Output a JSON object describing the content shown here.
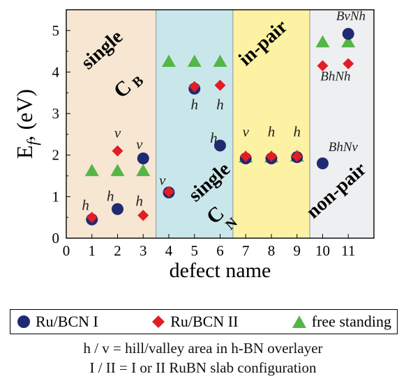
{
  "chart_data": {
    "type": "scatter",
    "xlabel": "defect name",
    "ylabel": "E",
    "ylabel_sub": "f",
    "ylabel_unit": ", (eV)",
    "xlim": [
      0,
      12
    ],
    "ylim": [
      0,
      5.5
    ],
    "xticks": [
      0,
      1,
      2,
      3,
      4,
      5,
      6,
      7,
      8,
      9,
      10,
      11
    ],
    "yticks": [
      0,
      1,
      2,
      3,
      4,
      5
    ],
    "grid": false,
    "legend_position": "below",
    "regions": [
      {
        "x0": 0,
        "x1": 3.5,
        "color": "#f6e6d2",
        "labels": [
          "single",
          "C",
          "B"
        ]
      },
      {
        "x0": 3.5,
        "x1": 6.5,
        "color": "#c9e7ea",
        "labels": [
          "single",
          "C",
          "N"
        ]
      },
      {
        "x0": 6.5,
        "x1": 9.5,
        "color": "#fdf2a4",
        "labels": [
          "in-pair"
        ]
      },
      {
        "x0": 9.5,
        "x1": 12,
        "color": "#eeeff1",
        "labels": [
          "non-pair"
        ]
      }
    ],
    "series": [
      {
        "name": "Ru/BCN I",
        "marker": "circle",
        "color": "#1f2a73",
        "x": [
          1,
          2,
          3,
          4,
          5,
          6,
          7,
          8,
          9,
          10,
          11
        ],
        "y": [
          0.45,
          0.7,
          1.92,
          1.1,
          3.6,
          2.23,
          1.92,
          1.92,
          1.95,
          1.8,
          4.92
        ]
      },
      {
        "name": "Ru/BCN II",
        "marker": "diamond",
        "color": "#e01e24",
        "x": [
          1,
          2,
          3,
          4,
          5,
          6,
          7,
          8,
          9,
          10,
          11
        ],
        "y": [
          0.5,
          2.1,
          0.55,
          1.12,
          3.65,
          3.68,
          1.97,
          1.97,
          1.97,
          4.15,
          4.2
        ]
      },
      {
        "name": "free standing",
        "marker": "triangle",
        "color": "#55b548",
        "x": [
          1,
          2,
          3,
          4,
          5,
          6,
          7,
          8,
          9,
          10,
          11
        ],
        "y": [
          1.62,
          1.62,
          1.62,
          4.25,
          4.25,
          4.25,
          1.95,
          1.95,
          1.97,
          4.72,
          4.72
        ]
      }
    ],
    "annotations": [
      {
        "text": "h",
        "x": 0.75,
        "y": 0.68
      },
      {
        "text": "h",
        "x": 1.72,
        "y": 0.9
      },
      {
        "text": "h",
        "x": 2.85,
        "y": 0.78
      },
      {
        "text": "v",
        "x": 2.0,
        "y": 2.42
      },
      {
        "text": "v",
        "x": 2.85,
        "y": 2.15
      },
      {
        "text": "v",
        "x": 3.75,
        "y": 1.28
      },
      {
        "text": "h",
        "x": 5.0,
        "y": 3.1
      },
      {
        "text": "h",
        "x": 6.0,
        "y": 3.1
      },
      {
        "text": "h",
        "x": 5.75,
        "y": 2.3
      },
      {
        "text": "v",
        "x": 7.0,
        "y": 2.45
      },
      {
        "text": "h",
        "x": 8.0,
        "y": 2.45
      },
      {
        "text": "h",
        "x": 9.0,
        "y": 2.45
      },
      {
        "text": "BvNh",
        "x": 11.1,
        "y": 5.25
      },
      {
        "text": "BhNh",
        "x": 10.5,
        "y": 3.8
      },
      {
        "text": "BhNv",
        "x": 10.8,
        "y": 2.1
      }
    ]
  },
  "legend": [
    {
      "label": "Ru/BCN I",
      "marker": "circle",
      "color": "#1f2a73"
    },
    {
      "label": "Ru/BCN II",
      "marker": "diamond",
      "color": "#e01e24"
    },
    {
      "label": "free standing",
      "marker": "triangle",
      "color": "#55b548"
    }
  ],
  "notes": {
    "line1": "h / v = hill/valley area in h-BN overlayer",
    "line2": "I / II = I or II RuBN slab configuration"
  }
}
